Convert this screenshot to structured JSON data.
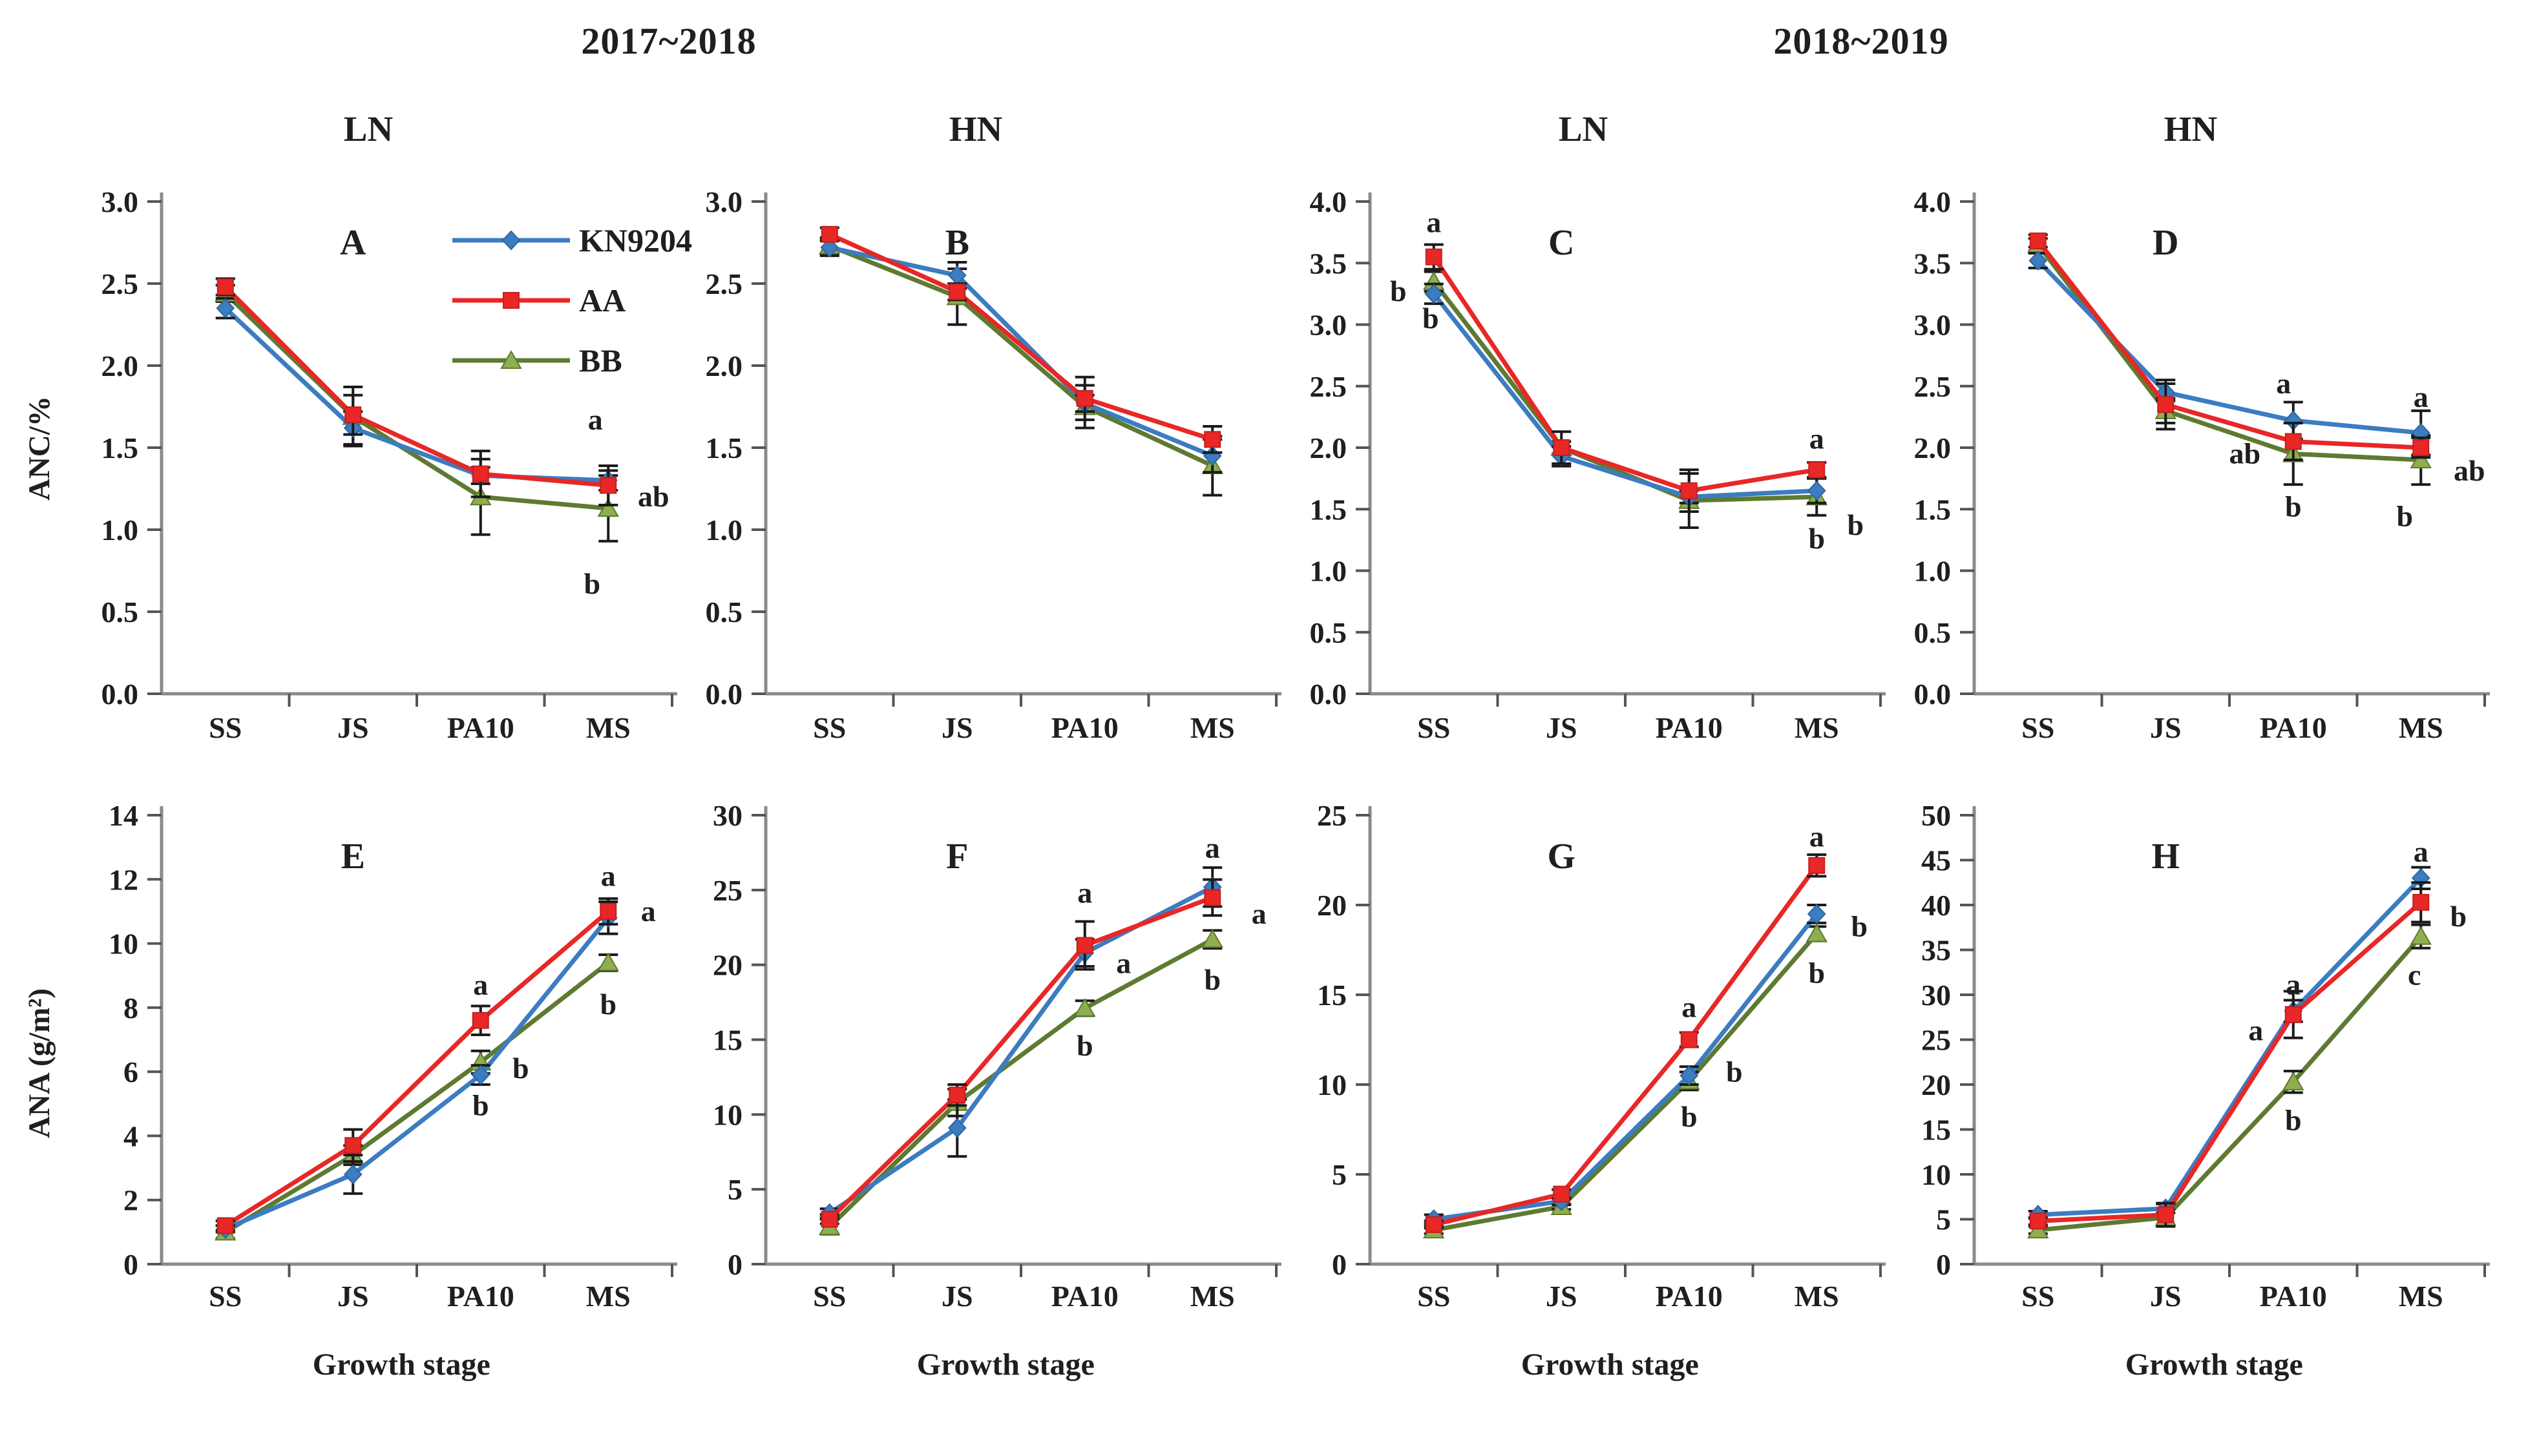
{
  "figure": {
    "year_titles": [
      "2017~2018",
      "2018~2019"
    ],
    "conditions": [
      "LN",
      "HN",
      "LN",
      "HN"
    ],
    "ylabel_top": "ANC/%",
    "ylabel_bottom": "ANA (g/m²)",
    "xlabel": "Growth stage",
    "legend": {
      "items": [
        {
          "name": "KN9204",
          "color": "#3c7cc0",
          "marker": "diamond",
          "marker_fill": "#3c7cc0",
          "marker_stroke": "#2f659e"
        },
        {
          "name": "AA",
          "color": "#e82726",
          "marker": "square",
          "marker_fill": "#e82726",
          "marker_stroke": "#c41f1f"
        },
        {
          "name": "BB",
          "color": "#5e7a31",
          "marker": "triangle",
          "marker_fill": "#8fae4e",
          "marker_stroke": "#5e7a31"
        }
      ]
    },
    "text_color": "#1f1f1f",
    "axis_color": "#8a8a8a",
    "tick_color": "#555555",
    "error_bar_color": "#1a1a1a"
  },
  "chart_data": [
    {
      "id": "A",
      "type": "line",
      "condition": "LN",
      "title": "2017~2018 LN",
      "ylim": [
        0,
        3
      ],
      "ystep": 0.5,
      "ydecimals": 1,
      "grid": false,
      "categories": [
        "SS",
        "JS",
        "PA10",
        "MS"
      ],
      "series": [
        {
          "name": "KN9204",
          "values": [
            2.35,
            1.62,
            1.33,
            1.3
          ],
          "errors": [
            0.06,
            0.1,
            0.05,
            0.06
          ]
        },
        {
          "name": "AA",
          "values": [
            2.48,
            1.7,
            1.34,
            1.27
          ],
          "errors": [
            0.05,
            0.12,
            0.14,
            0.12
          ]
        },
        {
          "name": "BB",
          "values": [
            2.44,
            1.69,
            1.2,
            1.13
          ],
          "errors": [
            0.05,
            0.18,
            0.23,
            0.2
          ]
        }
      ],
      "letters": [
        {
          "t": "a",
          "ci": 3,
          "dx": -20,
          "y": 1.67
        },
        {
          "t": "ab",
          "ci": 3,
          "dx": 70,
          "y": 1.2
        },
        {
          "t": "b",
          "ci": 3,
          "dx": -25,
          "y": 0.67
        }
      ],
      "show_legend": true
    },
    {
      "id": "B",
      "type": "line",
      "condition": "HN",
      "title": "2017~2018 HN",
      "ylim": [
        0,
        3
      ],
      "ystep": 0.5,
      "ydecimals": 1,
      "grid": false,
      "categories": [
        "SS",
        "JS",
        "PA10",
        "MS"
      ],
      "series": [
        {
          "name": "KN9204",
          "values": [
            2.72,
            2.55,
            1.77,
            1.45
          ],
          "errors": [
            0.05,
            0.08,
            0.05,
            0.1
          ]
        },
        {
          "name": "AA",
          "values": [
            2.8,
            2.45,
            1.8,
            1.55
          ],
          "errors": [
            0.04,
            0.05,
            0.13,
            0.08
          ]
        },
        {
          "name": "BB",
          "values": [
            2.73,
            2.42,
            1.75,
            1.39
          ],
          "errors": [
            0.05,
            0.17,
            0.13,
            0.18
          ]
        }
      ],
      "letters": []
    },
    {
      "id": "C",
      "type": "line",
      "condition": "LN",
      "title": "2018~2019 LN",
      "ylim": [
        0,
        4
      ],
      "ystep": 0.5,
      "ydecimals": 1,
      "grid": false,
      "categories": [
        "SS",
        "JS",
        "PA10",
        "MS"
      ],
      "series": [
        {
          "name": "KN9204",
          "values": [
            3.25,
            1.93,
            1.6,
            1.65
          ],
          "errors": [
            0.08,
            0.08,
            0.05,
            0.1
          ]
        },
        {
          "name": "AA",
          "values": [
            3.55,
            2.0,
            1.65,
            1.82
          ],
          "errors": [
            0.1,
            0.13,
            0.17,
            0.06
          ]
        },
        {
          "name": "BB",
          "values": [
            3.35,
            2.0,
            1.57,
            1.6
          ],
          "errors": [
            0.08,
            0.05,
            0.22,
            0.15
          ]
        }
      ],
      "letters": [
        {
          "t": "a",
          "ci": 0,
          "dx": 0,
          "y": 3.83
        },
        {
          "t": "b",
          "ci": 0,
          "dx": -55,
          "y": 3.27
        },
        {
          "t": "b",
          "ci": 0,
          "dx": -5,
          "y": 3.05
        },
        {
          "t": "a",
          "ci": 3,
          "dx": 0,
          "y": 2.07
        },
        {
          "t": "b",
          "ci": 3,
          "dx": 60,
          "y": 1.37
        },
        {
          "t": "b",
          "ci": 3,
          "dx": 0,
          "y": 1.26
        }
      ]
    },
    {
      "id": "D",
      "type": "line",
      "condition": "HN",
      "title": "2018~2019 HN",
      "ylim": [
        0,
        4
      ],
      "ystep": 0.5,
      "ydecimals": 1,
      "grid": false,
      "categories": [
        "SS",
        "JS",
        "PA10",
        "MS"
      ],
      "series": [
        {
          "name": "KN9204",
          "values": [
            3.52,
            2.45,
            2.22,
            2.12
          ],
          "errors": [
            0.06,
            0.07,
            0.15,
            0.18
          ]
        },
        {
          "name": "AA",
          "values": [
            3.68,
            2.35,
            2.05,
            2.0
          ],
          "errors": [
            0.05,
            0.2,
            0.15,
            0.08
          ]
        },
        {
          "name": "BB",
          "values": [
            3.65,
            2.3,
            1.95,
            1.9
          ],
          "errors": [
            0.05,
            0.1,
            0.25,
            0.2
          ]
        }
      ],
      "letters": [
        {
          "t": "a",
          "ci": 2,
          "dx": -15,
          "y": 2.52
        },
        {
          "t": "ab",
          "ci": 2,
          "dx": -75,
          "y": 1.95
        },
        {
          "t": "b",
          "ci": 2,
          "dx": 0,
          "y": 1.52
        },
        {
          "t": "a",
          "ci": 3,
          "dx": 0,
          "y": 2.41
        },
        {
          "t": "b",
          "ci": 3,
          "dx": -25,
          "y": 1.44
        },
        {
          "t": "ab",
          "ci": 3,
          "dx": 75,
          "y": 1.81
        }
      ]
    },
    {
      "id": "E",
      "type": "line",
      "condition": "LN",
      "title": "2017~2018 LN",
      "ylim": [
        0,
        14
      ],
      "ystep": 2,
      "ydecimals": 0,
      "grid": false,
      "categories": [
        "SS",
        "JS",
        "PA10",
        "MS"
      ],
      "series": [
        {
          "name": "KN9204",
          "values": [
            1.1,
            2.8,
            5.9,
            10.8
          ],
          "errors": [
            0.1,
            0.6,
            0.3,
            0.5
          ]
        },
        {
          "name": "AA",
          "values": [
            1.2,
            3.7,
            7.6,
            11.0
          ],
          "errors": [
            0.15,
            0.5,
            0.45,
            0.4
          ]
        },
        {
          "name": "BB",
          "values": [
            1.0,
            3.4,
            6.3,
            9.4
          ],
          "errors": [
            0.2,
            0.3,
            0.35,
            0.25
          ]
        }
      ],
      "letters": [
        {
          "t": "a",
          "ci": 2,
          "dx": 0,
          "y": 8.7
        },
        {
          "t": "b",
          "ci": 2,
          "dx": 62,
          "y": 6.1
        },
        {
          "t": "b",
          "ci": 2,
          "dx": 0,
          "y": 4.95
        },
        {
          "t": "a",
          "ci": 3,
          "dx": 0,
          "y": 12.1
        },
        {
          "t": "a",
          "ci": 3,
          "dx": 62,
          "y": 11.0
        },
        {
          "t": "b",
          "ci": 3,
          "dx": 0,
          "y": 8.1
        }
      ]
    },
    {
      "id": "F",
      "type": "line",
      "condition": "HN",
      "title": "2017~2018 HN",
      "ylim": [
        0,
        30
      ],
      "ystep": 5,
      "ydecimals": 0,
      "grid": false,
      "categories": [
        "SS",
        "JS",
        "PA10",
        "MS"
      ],
      "series": [
        {
          "name": "KN9204",
          "values": [
            3.4,
            9.1,
            20.8,
            25.2
          ],
          "errors": [
            0.3,
            1.9,
            0.9,
            1.3
          ]
        },
        {
          "name": "AA",
          "values": [
            3.0,
            11.3,
            21.3,
            24.5
          ],
          "errors": [
            0.3,
            0.7,
            1.6,
            1.2
          ]
        },
        {
          "name": "BB",
          "values": [
            2.5,
            10.8,
            17.1,
            21.7
          ],
          "errors": [
            0.5,
            0.9,
            0.5,
            0.6
          ]
        }
      ],
      "letters": [
        {
          "t": "a",
          "ci": 2,
          "dx": 0,
          "y": 24.8
        },
        {
          "t": "a",
          "ci": 2,
          "dx": 60,
          "y": 20.1
        },
        {
          "t": "b",
          "ci": 2,
          "dx": 0,
          "y": 14.6
        },
        {
          "t": "a",
          "ci": 3,
          "dx": 0,
          "y": 27.8
        },
        {
          "t": "a",
          "ci": 3,
          "dx": 72,
          "y": 23.4
        },
        {
          "t": "b",
          "ci": 3,
          "dx": 0,
          "y": 19.0
        }
      ]
    },
    {
      "id": "G",
      "type": "line",
      "condition": "LN",
      "title": "2018~2019 LN",
      "ylim": [
        0,
        25
      ],
      "ystep": 5,
      "ydecimals": 0,
      "grid": false,
      "categories": [
        "SS",
        "JS",
        "PA10",
        "MS"
      ],
      "series": [
        {
          "name": "KN9204",
          "values": [
            2.5,
            3.5,
            10.5,
            19.5
          ],
          "errors": [
            0.25,
            0.2,
            0.5,
            0.5
          ]
        },
        {
          "name": "AA",
          "values": [
            2.2,
            3.9,
            12.5,
            22.2
          ],
          "errors": [
            0.2,
            0.25,
            0.4,
            0.6
          ]
        },
        {
          "name": "BB",
          "values": [
            1.9,
            3.2,
            10.2,
            18.4
          ],
          "errors": [
            0.2,
            0.15,
            0.5,
            0.4
          ]
        }
      ],
      "letters": [
        {
          "t": "a",
          "ci": 2,
          "dx": 0,
          "y": 14.3
        },
        {
          "t": "b",
          "ci": 2,
          "dx": 70,
          "y": 10.7
        },
        {
          "t": "b",
          "ci": 2,
          "dx": 0,
          "y": 8.2
        },
        {
          "t": "a",
          "ci": 3,
          "dx": 0,
          "y": 23.8
        },
        {
          "t": "b",
          "ci": 3,
          "dx": 66,
          "y": 18.8
        },
        {
          "t": "b",
          "ci": 3,
          "dx": 0,
          "y": 16.2
        }
      ]
    },
    {
      "id": "H",
      "type": "line",
      "condition": "HN",
      "title": "2018~2019 HN",
      "ylim": [
        0,
        50
      ],
      "ystep": 5,
      "ydecimals": 0,
      "grid": false,
      "categories": [
        "SS",
        "JS",
        "PA10",
        "MS"
      ],
      "series": [
        {
          "name": "KN9204",
          "values": [
            5.5,
            6.2,
            28.2,
            43.0
          ],
          "errors": [
            0.4,
            0.5,
            1.2,
            1.2
          ]
        },
        {
          "name": "AA",
          "values": [
            4.8,
            5.5,
            27.8,
            40.3
          ],
          "errors": [
            0.4,
            1.3,
            2.6,
            2.2
          ]
        },
        {
          "name": "BB",
          "values": [
            3.8,
            5.2,
            20.3,
            36.5
          ],
          "errors": [
            0.4,
            0.9,
            1.2,
            1.3
          ]
        }
      ],
      "letters": [
        {
          "t": "a",
          "ci": 2,
          "dx": 0,
          "y": 31.1
        },
        {
          "t": "a",
          "ci": 2,
          "dx": -58,
          "y": 26.0
        },
        {
          "t": "b",
          "ci": 2,
          "dx": 0,
          "y": 16.0
        },
        {
          "t": "a",
          "ci": 3,
          "dx": 0,
          "y": 45.9
        },
        {
          "t": "b",
          "ci": 3,
          "dx": 58,
          "y": 38.7
        },
        {
          "t": "c",
          "ci": 3,
          "dx": -10,
          "y": 32.2
        }
      ]
    }
  ]
}
